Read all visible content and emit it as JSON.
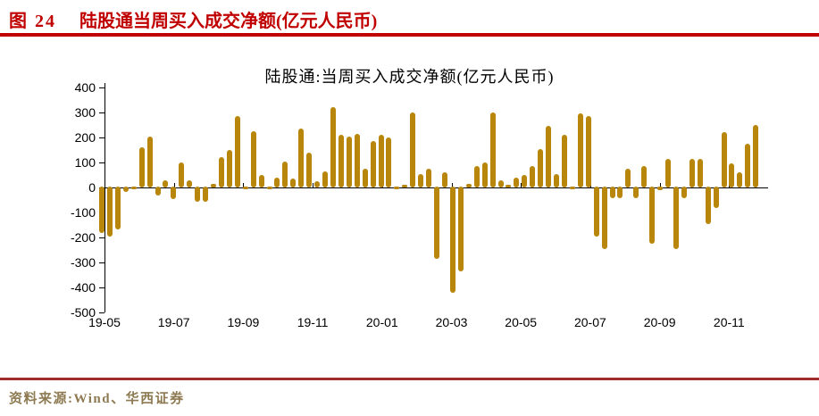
{
  "figure": {
    "label": "图 24",
    "title": "陆股通当周买入成交净额(亿元人民币)"
  },
  "footer": {
    "source": "资料来源:Wind、华西证券"
  },
  "colors": {
    "header_red": "#C00000",
    "footer_rule_red": "#A02C2C",
    "footer_text_gold": "#8E7A52",
    "bar_gold": "#B8860B",
    "axis_black": "#000000"
  },
  "chart_data": {
    "type": "bar",
    "title": "陆股通:当周买入成交净额(亿元人民币)",
    "x_unit": "week",
    "x_tick_labels": [
      "19-05",
      "19-07",
      "19-09",
      "19-11",
      "20-01",
      "20-03",
      "20-05",
      "20-07",
      "20-09",
      "20-11"
    ],
    "y_ticks": [
      400,
      300,
      200,
      100,
      0,
      -100,
      -200,
      -300,
      -400,
      -500
    ],
    "ylim": [
      -500,
      400
    ],
    "grid": "off",
    "legend": "none",
    "bar_color": "#B8860B",
    "values": [
      -185,
      -200,
      -170,
      -20,
      -5,
      160,
      205,
      -35,
      30,
      -50,
      100,
      30,
      -60,
      -60,
      15,
      120,
      150,
      285,
      -10,
      225,
      50,
      -5,
      40,
      105,
      35,
      235,
      140,
      25,
      65,
      320,
      210,
      205,
      215,
      75,
      185,
      210,
      200,
      -5,
      5,
      300,
      55,
      75,
      -290,
      60,
      -425,
      -340,
      15,
      85,
      100,
      300,
      30,
      5,
      40,
      50,
      85,
      155,
      245,
      55,
      210,
      -5,
      295,
      285,
      -200,
      -250,
      -45,
      -45,
      75,
      -45,
      85,
      -230,
      -15,
      115,
      -250,
      -45,
      115,
      115,
      -150,
      -85,
      220,
      95,
      60,
      175,
      250
    ]
  }
}
